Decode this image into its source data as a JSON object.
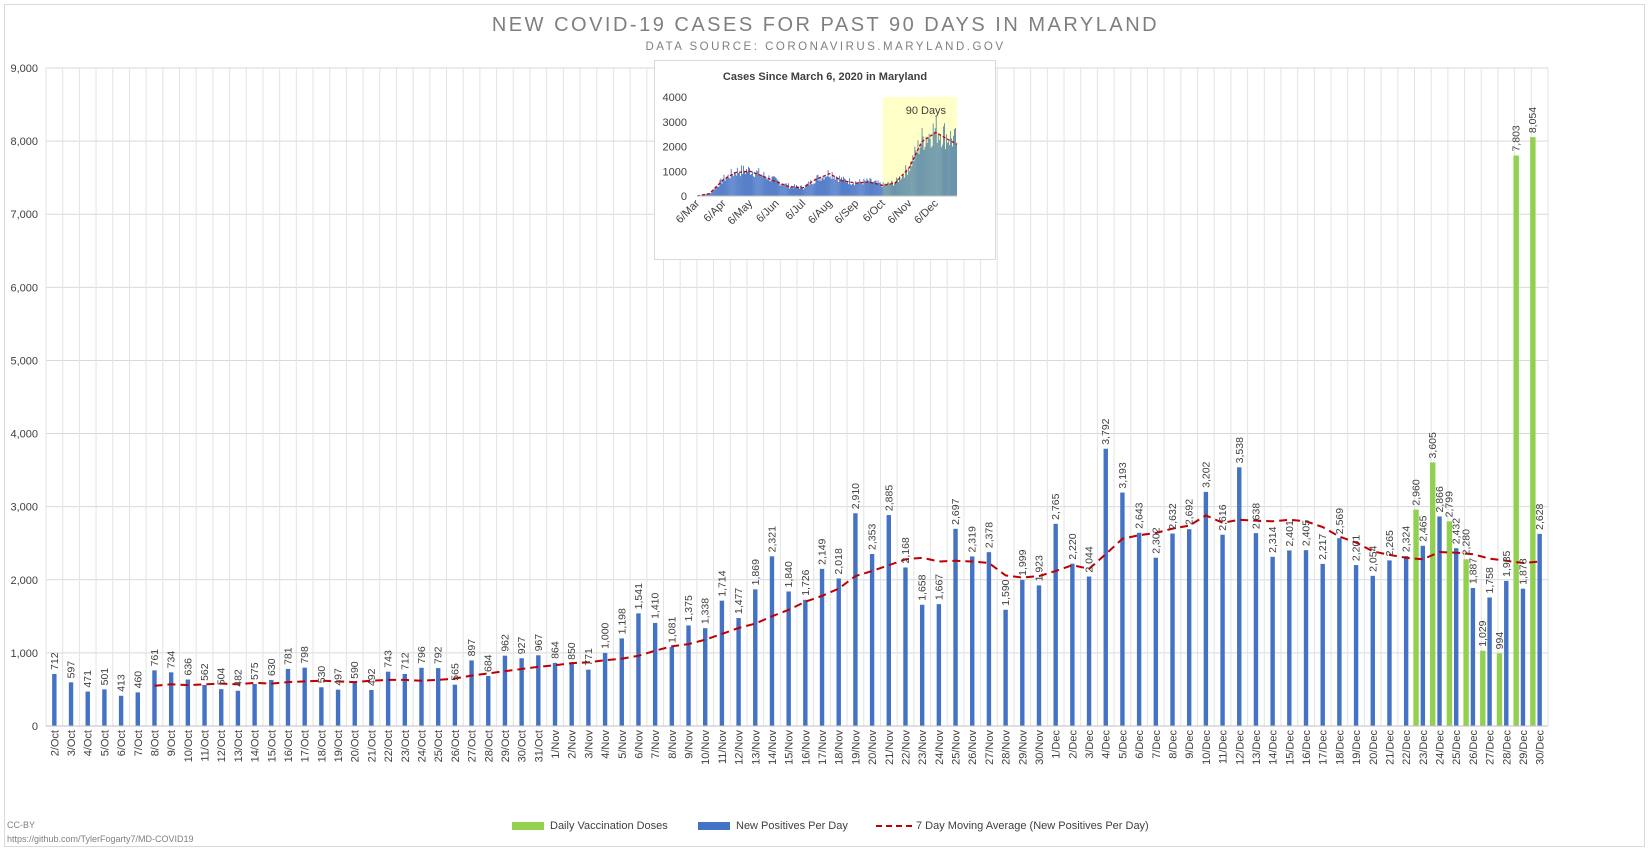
{
  "header": {
    "title": "NEW COVID-19 CASES FOR PAST 90 DAYS IN MARYLAND",
    "subtitle": "DATA SOURCE: CORONAVIRUS.MARYLAND.GOV"
  },
  "footer": {
    "license": "CC-BY",
    "url": "https://github.com/TylerFogarty7/MD-COVID19"
  },
  "colors": {
    "cases": "#4472c4",
    "vaccination": "#92d050",
    "moving_average": "#c00000",
    "highlight": "#ffffc8"
  },
  "chart_data": [
    {
      "type": "bar",
      "ylim": [
        0,
        9000
      ],
      "yticks": [
        "0",
        "1,000",
        "2,000",
        "3,000",
        "4,000",
        "5,000",
        "6,000",
        "7,000",
        "8,000",
        "9,000"
      ],
      "grid": true,
      "legend_position": "bottom",
      "categories": [
        "2/Oct",
        "3/Oct",
        "4/Oct",
        "5/Oct",
        "6/Oct",
        "7/Oct",
        "8/Oct",
        "9/Oct",
        "10/Oct",
        "11/Oct",
        "12/Oct",
        "13/Oct",
        "14/Oct",
        "15/Oct",
        "16/Oct",
        "17/Oct",
        "18/Oct",
        "19/Oct",
        "20/Oct",
        "21/Oct",
        "22/Oct",
        "23/Oct",
        "24/Oct",
        "25/Oct",
        "26/Oct",
        "27/Oct",
        "28/Oct",
        "29/Oct",
        "30/Oct",
        "31/Oct",
        "1/Nov",
        "2/Nov",
        "3/Nov",
        "4/Nov",
        "5/Nov",
        "6/Nov",
        "7/Nov",
        "8/Nov",
        "9/Nov",
        "10/Nov",
        "11/Nov",
        "12/Nov",
        "13/Nov",
        "14/Nov",
        "15/Nov",
        "16/Nov",
        "17/Nov",
        "18/Nov",
        "19/Nov",
        "20/Nov",
        "21/Nov",
        "22/Nov",
        "23/Nov",
        "24/Nov",
        "25/Nov",
        "26/Nov",
        "27/Nov",
        "28/Nov",
        "29/Nov",
        "30/Nov",
        "1/Dec",
        "2/Dec",
        "3/Dec",
        "4/Dec",
        "5/Dec",
        "6/Dec",
        "7/Dec",
        "8/Dec",
        "9/Dec",
        "10/Dec",
        "11/Dec",
        "12/Dec",
        "13/Dec",
        "14/Dec",
        "15/Dec",
        "16/Dec",
        "17/Dec",
        "18/Dec",
        "19/Dec",
        "20/Dec",
        "21/Dec",
        "22/Dec",
        "23/Dec",
        "24/Dec",
        "25/Dec",
        "26/Dec",
        "27/Dec",
        "28/Dec",
        "29/Dec",
        "30/Dec"
      ],
      "series": [
        {
          "name": "New Positives Per Day",
          "kind": "bar",
          "values": [
            712,
            597,
            471,
            501,
            413,
            460,
            761,
            734,
            636,
            562,
            504,
            482,
            575,
            630,
            781,
            798,
            530,
            497,
            590,
            492,
            743,
            712,
            796,
            792,
            565,
            897,
            684,
            962,
            927,
            967,
            864,
            850,
            771,
            1000,
            1198,
            1541,
            1410,
            1081,
            1375,
            1338,
            1714,
            1477,
            1869,
            2321,
            1840,
            1726,
            2149,
            2018,
            2910,
            2353,
            2885,
            2168,
            1658,
            1667,
            2697,
            2319,
            2378,
            1590,
            1999,
            1923,
            2765,
            2220,
            2044,
            3792,
            3193,
            2643,
            2302,
            2632,
            2692,
            3202,
            2616,
            3538,
            2638,
            2314,
            2401,
            2405,
            2217,
            2569,
            2201,
            2054,
            2265,
            2324,
            2465,
            2866,
            2432,
            1887,
            1758,
            1985,
            1878,
            2628
          ],
          "labels": [
            "712",
            "597",
            "471",
            "501",
            "413",
            "460",
            "761",
            "734",
            "636",
            "562",
            "504",
            "482",
            "575",
            "630",
            "781",
            "798",
            "530",
            "497",
            "590",
            "492",
            "743",
            "712",
            "796",
            "792",
            "565",
            "897",
            "684",
            "962",
            "927",
            "967",
            "864",
            "850",
            "771",
            "1,000",
            "1,198",
            "1,541",
            "1,410",
            "1,081",
            "1,375",
            "1,338",
            "1,714",
            "1,477",
            "1,869",
            "2,321",
            "1,840",
            "1,726",
            "2,149",
            "2,018",
            "2,910",
            "2,353",
            "2,885",
            "2,168",
            "1,658",
            "1,667",
            "2,697",
            "2,319",
            "2,378",
            "1,590",
            "1,999",
            "1,923",
            "2,765",
            "2,220",
            "2,044",
            "3,792",
            "3,193",
            "2,643",
            "2,302",
            "2,632",
            "2,692",
            "3,202",
            "2,616",
            "3,538",
            "2,638",
            "2,314",
            "2,401",
            "2,405",
            "2,217",
            "2,569",
            "2,201",
            "2,054",
            "2,265",
            "2,324",
            "2,465",
            "2,866",
            "2,432",
            "1,887",
            "1,758",
            "1,985",
            "1,878",
            "2,628"
          ]
        },
        {
          "name": "Daily Vaccination Doses",
          "kind": "bar",
          "values": [
            null,
            null,
            null,
            null,
            null,
            null,
            null,
            null,
            null,
            null,
            null,
            null,
            null,
            null,
            null,
            null,
            null,
            null,
            null,
            null,
            null,
            null,
            null,
            null,
            null,
            null,
            null,
            null,
            null,
            null,
            null,
            null,
            null,
            null,
            null,
            null,
            null,
            null,
            null,
            null,
            null,
            null,
            null,
            null,
            null,
            null,
            null,
            null,
            null,
            null,
            null,
            null,
            null,
            null,
            null,
            null,
            null,
            null,
            null,
            null,
            null,
            null,
            null,
            null,
            null,
            null,
            null,
            null,
            null,
            null,
            null,
            null,
            null,
            null,
            null,
            null,
            null,
            null,
            null,
            null,
            null,
            null,
            2960,
            3605,
            2799,
            2280,
            1029,
            994,
            7803,
            8054
          ],
          "labels": [
            null,
            null,
            null,
            null,
            null,
            null,
            null,
            null,
            null,
            null,
            null,
            null,
            null,
            null,
            null,
            null,
            null,
            null,
            null,
            null,
            null,
            null,
            null,
            null,
            null,
            null,
            null,
            null,
            null,
            null,
            null,
            null,
            null,
            null,
            null,
            null,
            null,
            null,
            null,
            null,
            null,
            null,
            null,
            null,
            null,
            null,
            null,
            null,
            null,
            null,
            null,
            null,
            null,
            null,
            null,
            null,
            null,
            null,
            null,
            null,
            null,
            null,
            null,
            null,
            null,
            null,
            null,
            null,
            null,
            null,
            null,
            null,
            null,
            null,
            null,
            null,
            null,
            null,
            null,
            null,
            null,
            null,
            "2,960",
            "3,605",
            "2,799",
            "2,280",
            "1,029",
            "994",
            "7,803",
            "8,054"
          ]
        },
        {
          "name": "7 Day Moving Average (New Positives Per Day)",
          "kind": "line",
          "values": [
            null,
            null,
            null,
            null,
            null,
            null,
            550,
            570,
            560,
            570,
            580,
            570,
            590,
            580,
            600,
            610,
            620,
            610,
            600,
            620,
            630,
            630,
            620,
            630,
            650,
            690,
            720,
            750,
            780,
            810,
            830,
            860,
            870,
            900,
            920,
            960,
            1030,
            1090,
            1120,
            1180,
            1260,
            1340,
            1400,
            1500,
            1590,
            1700,
            1780,
            1880,
            2050,
            2120,
            2200,
            2280,
            2300,
            2250,
            2260,
            2250,
            2230,
            2060,
            2030,
            2050,
            2120,
            2200,
            2150,
            2350,
            2560,
            2610,
            2640,
            2700,
            2740,
            2880,
            2780,
            2820,
            2810,
            2800,
            2820,
            2800,
            2720,
            2590,
            2510,
            2390,
            2340,
            2300,
            2280,
            2380,
            2370,
            2350,
            2290,
            2260,
            2230,
            2250
          ]
        }
      ]
    },
    {
      "type": "bar",
      "title": "Cases Since March 6, 2020 in Maryland",
      "annotation": "90 Days",
      "ylim": [
        0,
        4000
      ],
      "yticks": [
        "0",
        "1000",
        "2000",
        "3000",
        "4000"
      ],
      "categories": [
        "6/Mar",
        "6/Apr",
        "6/May",
        "6/Jun",
        "6/Jul",
        "6/Aug",
        "6/Sep",
        "6/Oct",
        "6/Nov",
        "6/Dec"
      ],
      "highlight_range": [
        "6/Oct",
        "30/Dec"
      ],
      "series": [
        {
          "name": "New Positives Per Day",
          "kind": "bar",
          "x": [
            "6/Mar",
            "20/Mar",
            "6/Apr",
            "20/Apr",
            "6/May",
            "20/May",
            "6/Jun",
            "20/Jun",
            "6/Jul",
            "20/Jul",
            "6/Aug",
            "20/Aug",
            "6/Sep",
            "20/Sep",
            "6/Oct",
            "20/Oct",
            "6/Nov",
            "20/Nov",
            "6/Dec",
            "20/Dec",
            "30/Dec"
          ],
          "values": [
            0,
            100,
            700,
            1000,
            1050,
            850,
            600,
            400,
            350,
            700,
            950,
            650,
            550,
            600,
            450,
            550,
            1200,
            2300,
            2700,
            2400,
            2200
          ]
        }
      ]
    }
  ]
}
